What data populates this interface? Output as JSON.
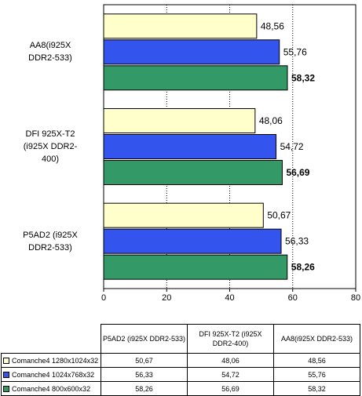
{
  "chart_data": {
    "type": "bar",
    "orientation": "horizontal",
    "categories": [
      "AA8(i925X DDR2-533)",
      "DFI 925X-T2 (i925X DDR2-400)",
      "P5AD2 (i925X DDR2-533)"
    ],
    "category_lines": [
      [
        "AA8(i925X",
        "DDR2-533)"
      ],
      [
        "DFI 925X-T2",
        "(i925X DDR2-",
        "400)"
      ],
      [
        "P5AD2 (i925X",
        "DDR2-533)"
      ]
    ],
    "series": [
      {
        "name": "Comanche4   1280x1024x32",
        "color": "#ffffcc",
        "values": [
          48.56,
          48.06,
          50.67
        ],
        "labels": [
          "48,56",
          "48,06",
          "50,67"
        ],
        "bold": false
      },
      {
        "name": "Comanche4   1024x768x32",
        "color": "#3355ee",
        "values": [
          55.76,
          54.72,
          56.33
        ],
        "labels": [
          "55,76",
          "54,72",
          "56,33"
        ],
        "bold": false
      },
      {
        "name": "Comanche4   800x600x32",
        "color": "#339966",
        "values": [
          58.32,
          56.69,
          58.26
        ],
        "labels": [
          "58,32",
          "56,69",
          "58,26"
        ],
        "bold": true
      }
    ],
    "xlim": [
      0,
      80
    ],
    "xticks": [
      0,
      20,
      40,
      60,
      80
    ],
    "grid": "vertical dashed",
    "legend": "data table below chart"
  },
  "table": {
    "headers": [
      "P5AD2 (i925X DDR2-533)",
      "DFI 925X-T2 (i925X DDR2-400)",
      "AA8(i925X DDR2-533)"
    ],
    "rows": [
      {
        "label": "Comanche4   1280x1024x32",
        "cells": [
          "50,67",
          "48,06",
          "48,56"
        ]
      },
      {
        "label": "Comanche4   1024x768x32",
        "cells": [
          "56,33",
          "54,72",
          "55,76"
        ]
      },
      {
        "label": "Comanche4   800x600x32",
        "cells": [
          "58,26",
          "56,69",
          "58,32"
        ]
      }
    ]
  }
}
